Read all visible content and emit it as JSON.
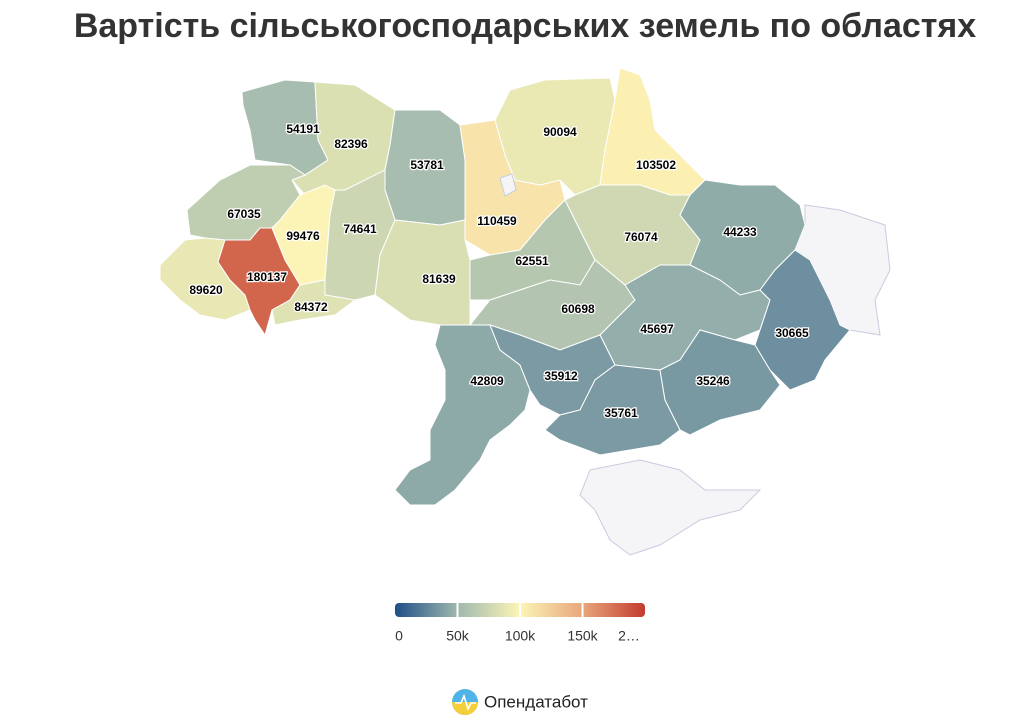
{
  "chart_data": {
    "type": "choropleth",
    "title": "Вартість сільськогосподарських земель по областях",
    "values": [
      54191,
      82396,
      53781,
      110459,
      90094,
      103502,
      67035,
      99476,
      74641,
      81639,
      62551,
      76074,
      44233,
      89620,
      180137,
      84372,
      60698,
      45697,
      30665,
      42809,
      35912,
      35761,
      35246
    ],
    "colorscale": [
      "#1f4f86",
      "#9fb8ae",
      "#fcf5b6",
      "#e8a67b",
      "#c23b2f"
    ],
    "clim": [
      0,
      200000
    ],
    "ticks": [
      0,
      {
        "value": 50000,
        "label": "50k"
      },
      {
        "value": 100000,
        "label": "100k"
      },
      {
        "value": 150000,
        "label": "150k"
      },
      {
        "value": 200000,
        "label": "2…"
      }
    ]
  },
  "footer": {
    "brand": "Опендатабот"
  }
}
